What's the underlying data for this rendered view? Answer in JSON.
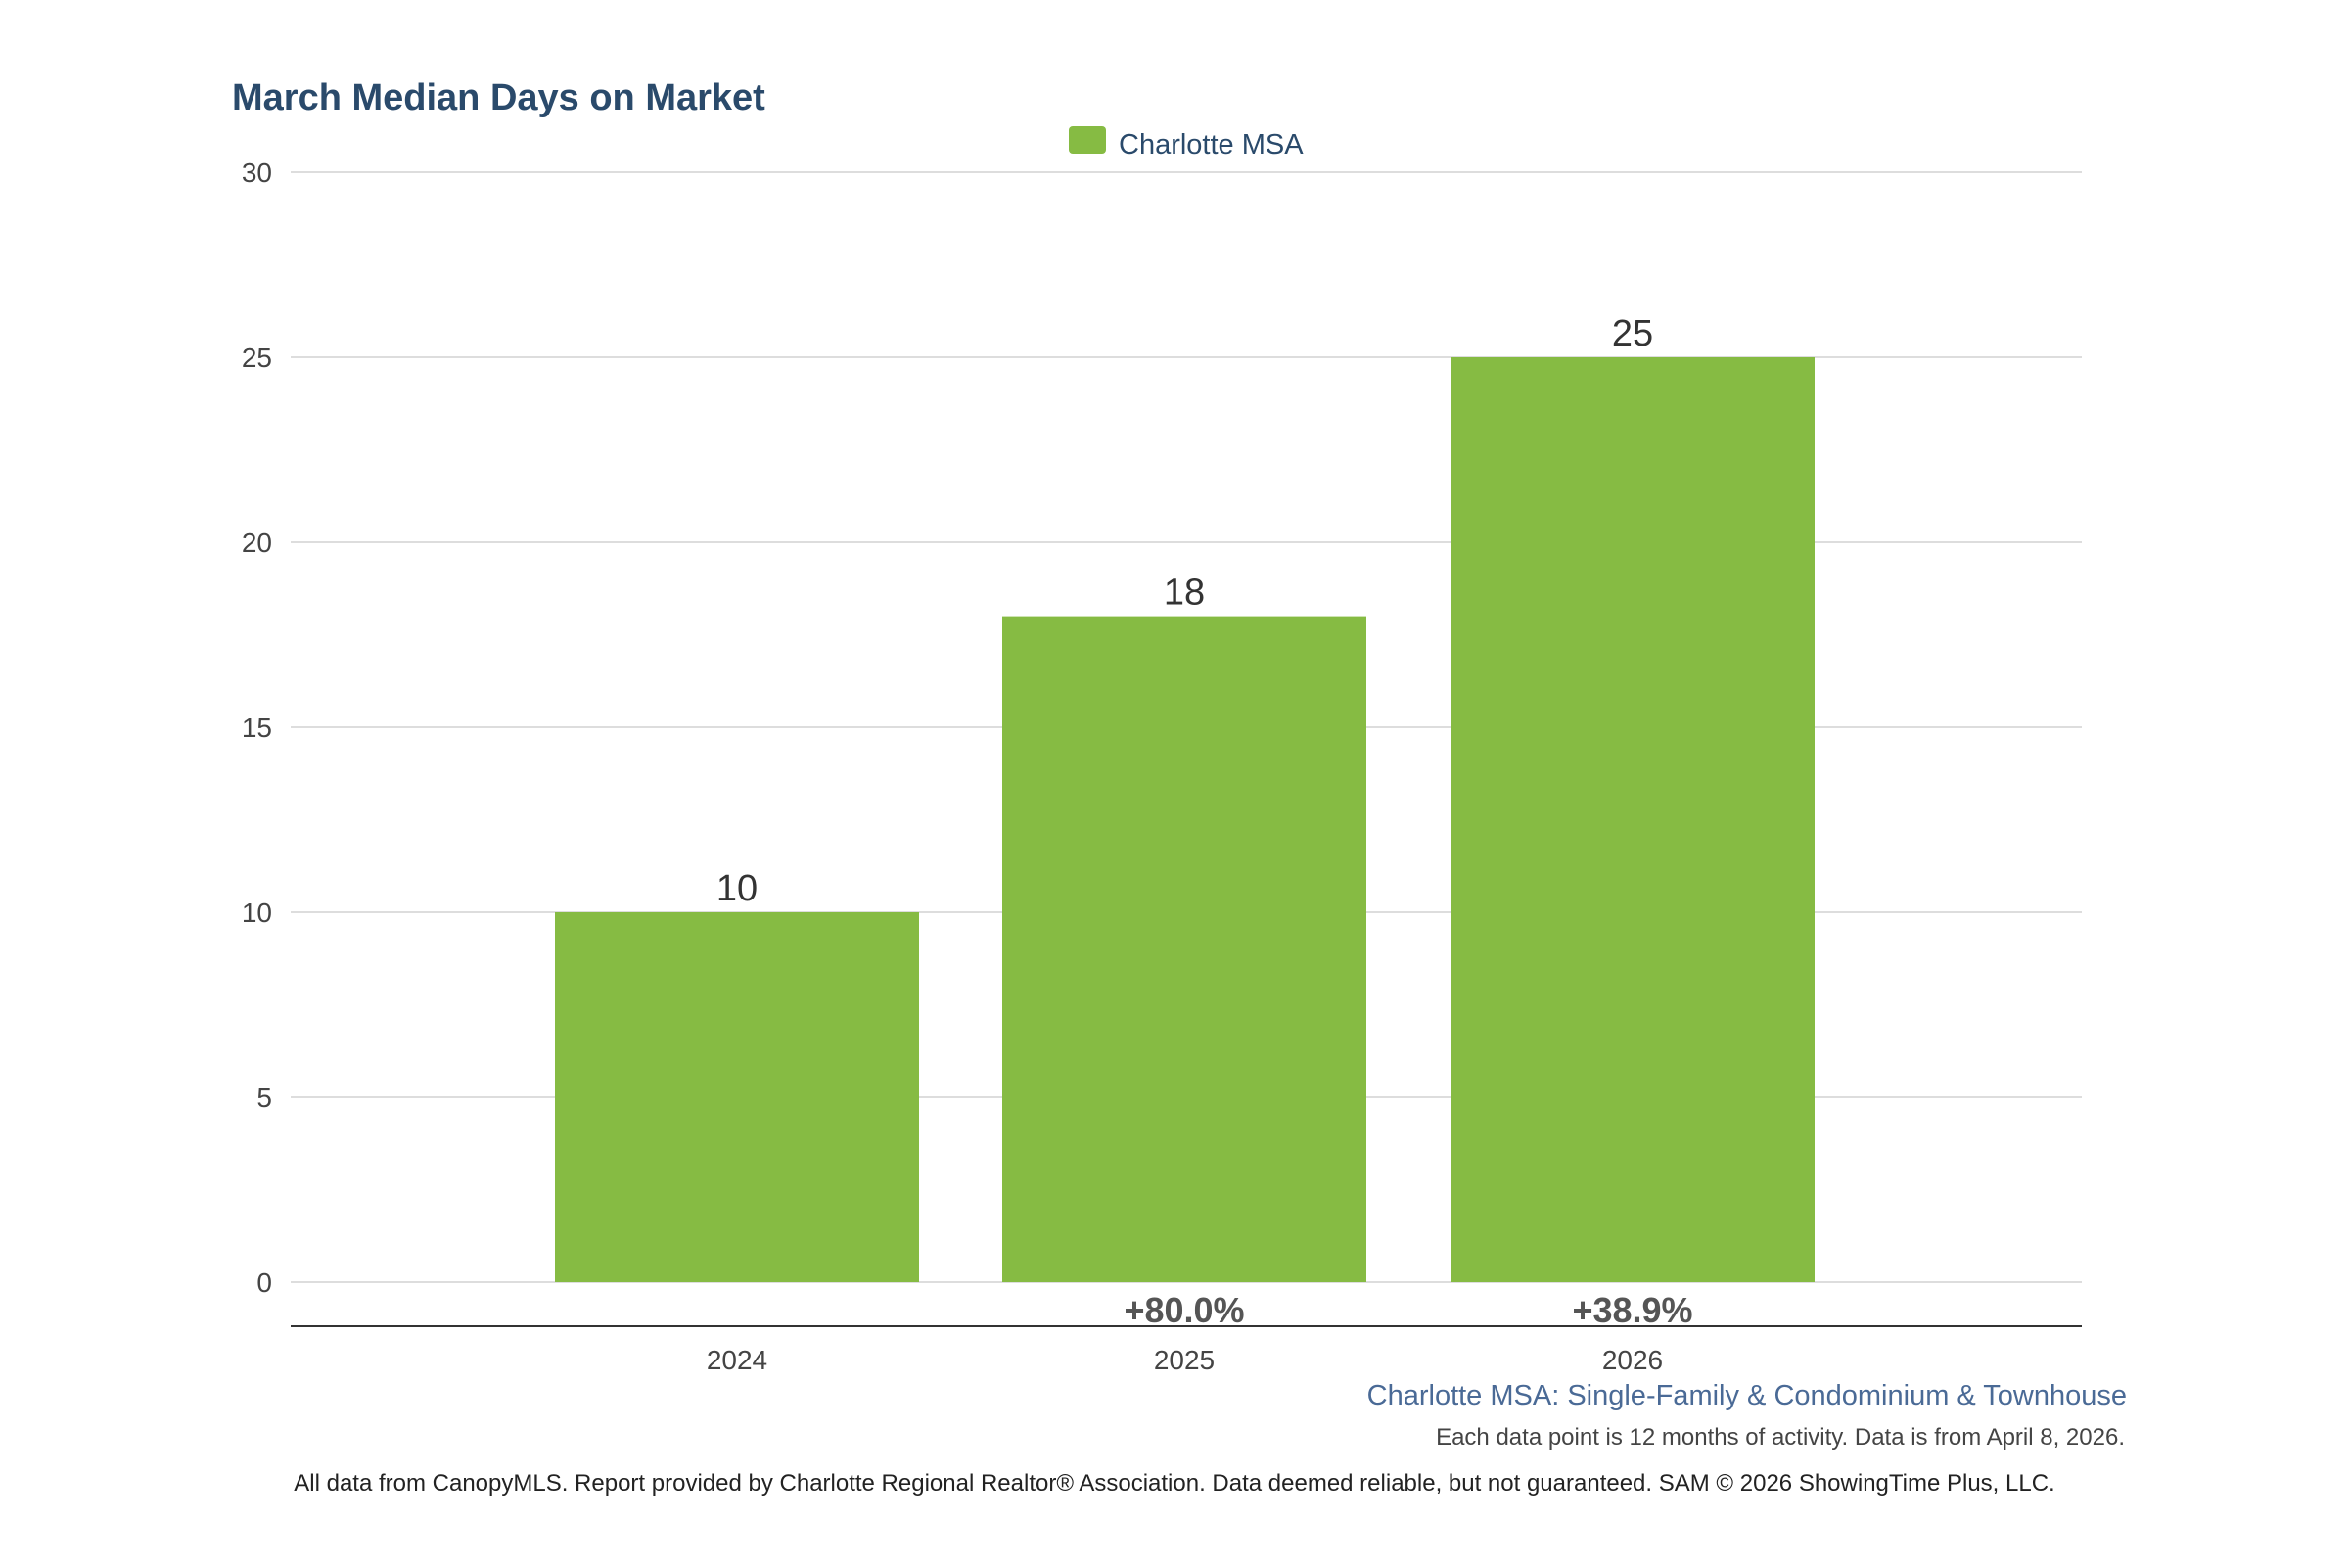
{
  "chart_data": {
    "type": "bar",
    "title": "March Median Days on Market",
    "categories": [
      "2024",
      "2025",
      "2026"
    ],
    "series": [
      {
        "name": "Charlotte MSA",
        "values": [
          10,
          18,
          25
        ],
        "color": "#86bb43"
      }
    ],
    "value_labels": [
      "10",
      "18",
      "25"
    ],
    "change_labels": [
      "",
      "+80.0%",
      "+38.9%"
    ],
    "ylim": [
      0,
      30
    ],
    "yticks": [
      0,
      5,
      10,
      15,
      20,
      25,
      30
    ],
    "xlabel": "",
    "ylabel": "",
    "grid": true,
    "legend": "top-center"
  },
  "series_description": "Charlotte MSA: Single-Family & Condominium & Townhouse",
  "data_note": "Each data point is 12 months of activity. Data is from April 8, 2026.",
  "footer": "All data from CanopyMLS. Report provided by Charlotte Regional Realtor® Association. Data deemed reliable, but not guaranteed. SAM © 2026 ShowingTime Plus, LLC.",
  "colors": {
    "title": "#2a4a6b",
    "bar": "#86bb43",
    "grid": "#dddddd",
    "axis": "#333333",
    "series_description": "#4a6a96"
  }
}
